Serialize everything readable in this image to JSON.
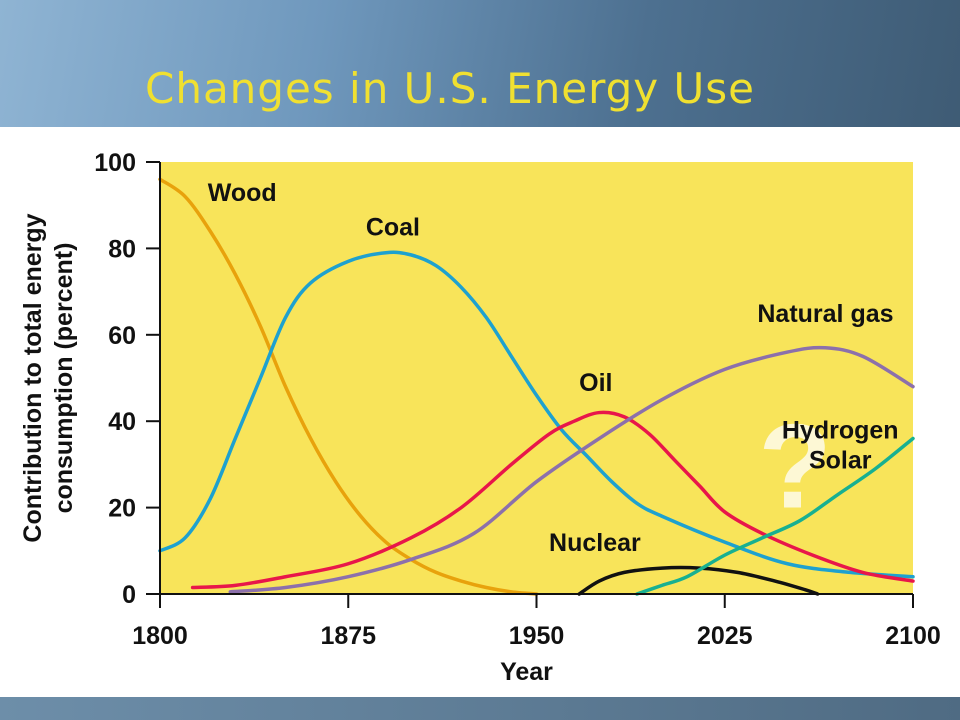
{
  "slide": {
    "title": "Changes in U.S. Energy Use"
  },
  "chart_data": {
    "type": "line",
    "title": "Changes in U.S. Energy Use",
    "xlabel": "Year",
    "ylabel": "Contribution to total energy consumption (percent)",
    "xlim": [
      1800,
      2100
    ],
    "ylim": [
      0,
      100
    ],
    "xticks": [
      1800,
      1875,
      1950,
      2025,
      2100
    ],
    "yticks": [
      0,
      20,
      40,
      60,
      80,
      100
    ],
    "grid": false,
    "legend": "none",
    "plot_background": "#f8e45a",
    "annotation": "?",
    "series": [
      {
        "name": "Wood",
        "color": "#e8a20c",
        "points": [
          [
            1800,
            96
          ],
          [
            1810,
            92
          ],
          [
            1820,
            84
          ],
          [
            1830,
            74
          ],
          [
            1840,
            62
          ],
          [
            1850,
            48
          ],
          [
            1860,
            36
          ],
          [
            1870,
            26
          ],
          [
            1880,
            18
          ],
          [
            1890,
            12
          ],
          [
            1900,
            8
          ],
          [
            1910,
            5
          ],
          [
            1920,
            3
          ],
          [
            1930,
            1.5
          ],
          [
            1940,
            0.5
          ],
          [
            1950,
            0
          ]
        ]
      },
      {
        "name": "Coal",
        "color": "#1ea1cf",
        "points": [
          [
            1800,
            10
          ],
          [
            1810,
            13
          ],
          [
            1820,
            22
          ],
          [
            1830,
            36
          ],
          [
            1840,
            50
          ],
          [
            1850,
            64
          ],
          [
            1860,
            72
          ],
          [
            1875,
            77
          ],
          [
            1890,
            79
          ],
          [
            1900,
            78.5
          ],
          [
            1910,
            76
          ],
          [
            1920,
            71
          ],
          [
            1930,
            64
          ],
          [
            1940,
            55
          ],
          [
            1950,
            46
          ],
          [
            1960,
            38
          ],
          [
            1970,
            32
          ],
          [
            1980,
            26
          ],
          [
            1990,
            21
          ],
          [
            2000,
            18
          ],
          [
            2025,
            12
          ],
          [
            2050,
            7
          ],
          [
            2075,
            5
          ],
          [
            2100,
            4
          ]
        ]
      },
      {
        "name": "Oil",
        "color": "#e8164a",
        "points": [
          [
            1813,
            1.5
          ],
          [
            1830,
            2
          ],
          [
            1850,
            4
          ],
          [
            1875,
            7
          ],
          [
            1900,
            13
          ],
          [
            1920,
            20
          ],
          [
            1940,
            30
          ],
          [
            1955,
            37
          ],
          [
            1965,
            40
          ],
          [
            1975,
            42
          ],
          [
            1985,
            41
          ],
          [
            1995,
            37
          ],
          [
            2005,
            31
          ],
          [
            2015,
            25
          ],
          [
            2025,
            19
          ],
          [
            2040,
            14
          ],
          [
            2060,
            9
          ],
          [
            2080,
            5
          ],
          [
            2100,
            3
          ]
        ]
      },
      {
        "name": "Natural gas",
        "color": "#8c70ab",
        "points": [
          [
            1828,
            0.5
          ],
          [
            1850,
            1.5
          ],
          [
            1875,
            4
          ],
          [
            1900,
            8
          ],
          [
            1925,
            14
          ],
          [
            1950,
            26
          ],
          [
            1975,
            36
          ],
          [
            2000,
            45
          ],
          [
            2025,
            52
          ],
          [
            2050,
            56
          ],
          [
            2065,
            57
          ],
          [
            2080,
            55
          ],
          [
            2100,
            48
          ]
        ]
      },
      {
        "name": "Nuclear",
        "color": "#111111",
        "points": [
          [
            1967,
            0
          ],
          [
            1975,
            3
          ],
          [
            1985,
            5
          ],
          [
            2000,
            6
          ],
          [
            2015,
            6
          ],
          [
            2030,
            5
          ],
          [
            2045,
            3
          ],
          [
            2057,
            1
          ],
          [
            2062,
            0
          ]
        ]
      },
      {
        "name": "Hydrogen Solar",
        "color": "#18b091",
        "points": [
          [
            1990,
            0
          ],
          [
            2000,
            2
          ],
          [
            2010,
            4
          ],
          [
            2025,
            9
          ],
          [
            2040,
            13
          ],
          [
            2055,
            17
          ],
          [
            2070,
            23
          ],
          [
            2085,
            29
          ],
          [
            2100,
            36
          ]
        ]
      }
    ],
    "labels": [
      {
        "series": "Wood",
        "lines": [
          "Wood"
        ],
        "x": 1819,
        "y": 91
      },
      {
        "series": "Coal",
        "lines": [
          "Coal"
        ],
        "x": 1882,
        "y": 83
      },
      {
        "series": "Natural gas",
        "lines": [
          "Natural gas"
        ],
        "x": 2038,
        "y": 63
      },
      {
        "series": "Oil",
        "lines": [
          "Oil"
        ],
        "x": 1967,
        "y": 47
      },
      {
        "series": "Hydrogen Solar",
        "lines": [
          "Hydrogen",
          "Solar"
        ],
        "x": 2071,
        "y": 36
      },
      {
        "series": "Nuclear",
        "lines": [
          "Nuclear"
        ],
        "x": 1955,
        "y": 10
      }
    ]
  }
}
